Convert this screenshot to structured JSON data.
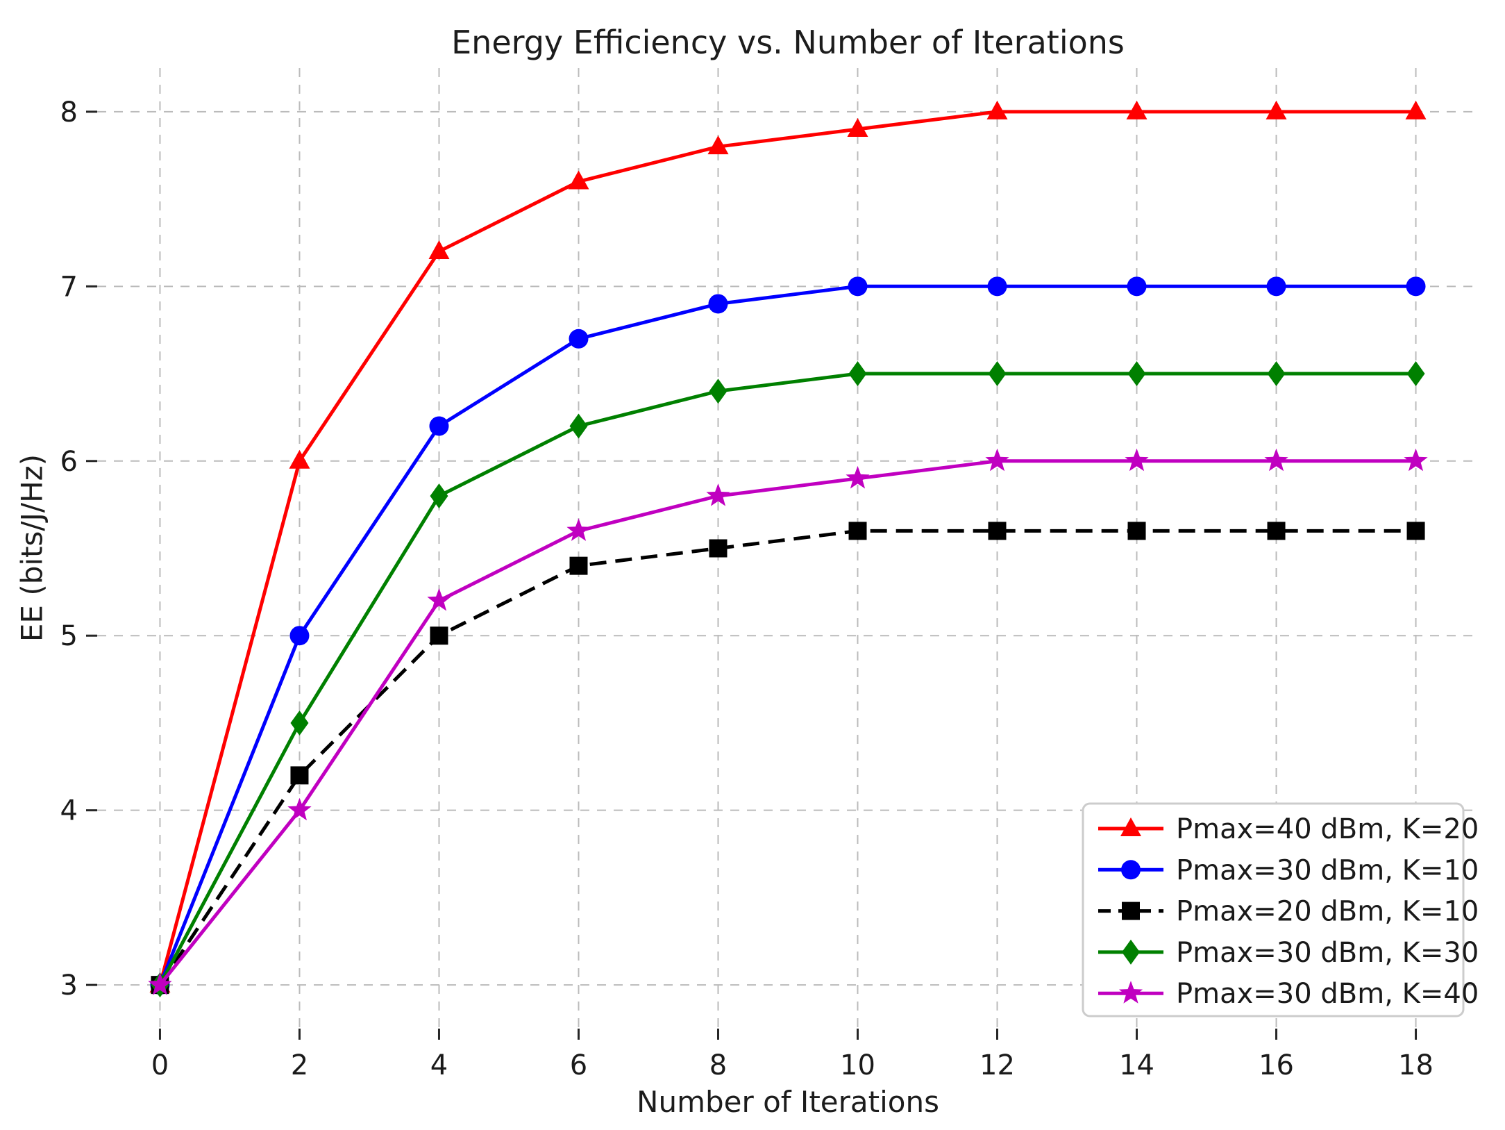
{
  "chart_data": {
    "type": "line",
    "title": "Energy Efficiency vs. Number of Iterations",
    "xlabel": "Number of Iterations",
    "ylabel": "EE (bits/J/Hz)",
    "x": [
      0,
      2,
      4,
      6,
      8,
      10,
      12,
      14,
      16,
      18
    ],
    "series": [
      {
        "name": "Pmax=40 dBm, K=20",
        "color": "#ff0000",
        "marker": "triangle",
        "linestyle": "solid",
        "values": [
          3.0,
          6.0,
          7.2,
          7.6,
          7.8,
          7.9,
          8.0,
          8.0,
          8.0,
          8.0
        ]
      },
      {
        "name": "Pmax=30 dBm, K=10",
        "color": "#0000ff",
        "marker": "circle",
        "linestyle": "solid",
        "values": [
          3.0,
          5.0,
          6.2,
          6.7,
          6.9,
          7.0,
          7.0,
          7.0,
          7.0,
          7.0
        ]
      },
      {
        "name": "Pmax=20 dBm, K=10",
        "color": "#000000",
        "marker": "square",
        "linestyle": "dashed",
        "values": [
          3.0,
          4.2,
          5.0,
          5.4,
          5.5,
          5.6,
          5.6,
          5.6,
          5.6,
          5.6
        ]
      },
      {
        "name": "Pmax=30 dBm, K=30",
        "color": "#008000",
        "marker": "diamond",
        "linestyle": "solid",
        "values": [
          3.0,
          4.5,
          5.8,
          6.2,
          6.4,
          6.5,
          6.5,
          6.5,
          6.5,
          6.5
        ]
      },
      {
        "name": "Pmax=30 dBm, K=40",
        "color": "#c000c0",
        "marker": "star",
        "linestyle": "solid",
        "values": [
          3.0,
          4.0,
          5.2,
          5.6,
          5.8,
          5.9,
          6.0,
          6.0,
          6.0,
          6.0
        ]
      }
    ],
    "x_ticks": [
      0,
      2,
      4,
      6,
      8,
      10,
      12,
      14,
      16,
      18
    ],
    "y_ticks": [
      3,
      4,
      5,
      6,
      7,
      8
    ],
    "xlim": [
      -0.9,
      18.9
    ],
    "ylim": [
      2.75,
      8.25
    ],
    "grid": true,
    "grid_style": "dashed",
    "legend_position": "lower right",
    "colors": {
      "background": "#ffffff",
      "grid": "#bbbbbb",
      "spine": "#262626",
      "text": "#1a1a1a",
      "legend_border": "#cccccc",
      "legend_background": "#ffffff"
    }
  }
}
